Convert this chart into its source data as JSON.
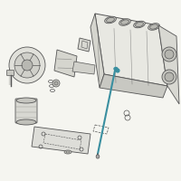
{
  "bg_color": "#f5f5f0",
  "line_color": "#888888",
  "dark_line": "#555555",
  "highlight_color": "#3a8fa0",
  "figsize": [
    2.0,
    2.0
  ],
  "dpi": 100
}
